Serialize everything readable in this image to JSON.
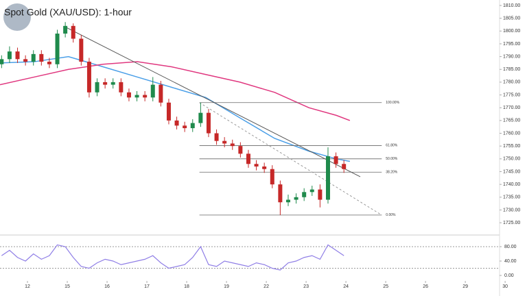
{
  "chart_data": {
    "type": "candlestick",
    "title": "Spot Gold (XAU/USD): 1-hour",
    "xlim": [
      -0.69,
      11.86
    ],
    "xticks": [
      {
        "value": 0,
        "label": "12"
      },
      {
        "value": 1,
        "label": "15"
      },
      {
        "value": 2,
        "label": "16"
      },
      {
        "value": 3,
        "label": "17"
      },
      {
        "value": 4,
        "label": "18"
      },
      {
        "value": 5,
        "label": "19"
      },
      {
        "value": 6,
        "label": "22"
      },
      {
        "value": 7,
        "label": "23"
      },
      {
        "value": 8,
        "label": "24"
      },
      {
        "value": 9,
        "label": "25"
      },
      {
        "value": 10,
        "label": "26"
      },
      {
        "value": 11,
        "label": "29"
      },
      {
        "value": 12,
        "label": "30"
      }
    ],
    "ylim": [
      1721,
      1812.14
    ],
    "yticks": [
      {
        "value": 1810,
        "label": "1810.00"
      },
      {
        "value": 1805,
        "label": "1805.00"
      },
      {
        "value": 1800,
        "label": "1800.00"
      },
      {
        "value": 1795,
        "label": "1795.00"
      },
      {
        "value": 1790,
        "label": "1790.00"
      },
      {
        "value": 1785,
        "label": "1785.00"
      },
      {
        "value": 1780,
        "label": "1780.00"
      },
      {
        "value": 1775,
        "label": "1775.00"
      },
      {
        "value": 1770,
        "label": "1770.00"
      },
      {
        "value": 1765,
        "label": "1765.00"
      },
      {
        "value": 1760,
        "label": "1760.00"
      },
      {
        "value": 1755,
        "label": "1755.00"
      },
      {
        "value": 1750,
        "label": "1750.00"
      },
      {
        "value": 1745,
        "label": "1745.00"
      },
      {
        "value": 1740,
        "label": "1740.00"
      },
      {
        "value": 1735,
        "label": "1735.00"
      },
      {
        "value": 1730,
        "label": "1730.00"
      },
      {
        "value": 1725,
        "label": "1725.00"
      }
    ],
    "up_color": "#1f8a4c",
    "down_color": "#c62828",
    "x": [
      -0.65,
      -0.45,
      -0.25,
      -0.05,
      0.15,
      0.35,
      0.55,
      0.75,
      0.95,
      1.15,
      1.35,
      1.55,
      1.75,
      1.95,
      2.15,
      2.35,
      2.55,
      2.75,
      2.95,
      3.15,
      3.35,
      3.55,
      3.75,
      3.95,
      4.15,
      4.35,
      4.55,
      4.75,
      4.95,
      5.15,
      5.35,
      5.55,
      5.75,
      5.95,
      6.15,
      6.35,
      6.55,
      6.75,
      6.95,
      7.15,
      7.35,
      7.55,
      7.75,
      7.95
    ],
    "open": [
      1787,
      1789,
      1792,
      1789,
      1788,
      1791,
      1788,
      1787,
      1799,
      1802,
      1797,
      1788,
      1776,
      1780,
      1779,
      1780,
      1776,
      1774,
      1775,
      1774,
      1779,
      1772,
      1765,
      1763,
      1762,
      1764,
      1768,
      1760,
      1757,
      1756,
      1755,
      1752,
      1748,
      1747,
      1746,
      1740,
      1733,
      1734,
      1735,
      1737,
      1738,
      1734,
      1751,
      1748
    ],
    "high": [
      1790.5,
      1794,
      1793.5,
      1790.5,
      1792.5,
      1792.5,
      1789.5,
      1800.5,
      1803.5,
      1803,
      1798.5,
      1789.5,
      1781.5,
      1781.5,
      1781.5,
      1781.5,
      1777.5,
      1776.5,
      1776.5,
      1782,
      1780.5,
      1773.5,
      1766.5,
      1764.5,
      1765.5,
      1772,
      1769.5,
      1761.5,
      1758.5,
      1757.5,
      1756.5,
      1753.5,
      1749.5,
      1748.5,
      1747.5,
      1741.5,
      1736,
      1736.5,
      1738.5,
      1739.5,
      1740,
      1754.5,
      1752.5,
      1749.5
    ],
    "low": [
      1785.5,
      1787.5,
      1787.5,
      1786.5,
      1786.5,
      1786.5,
      1785.5,
      1785.5,
      1797.5,
      1795.5,
      1786.5,
      1774,
      1774.5,
      1777.5,
      1777.5,
      1774.5,
      1772.5,
      1772.5,
      1772.5,
      1772.5,
      1770.5,
      1763.5,
      1761.5,
      1760.5,
      1760.5,
      1762.5,
      1758.5,
      1755.5,
      1754.5,
      1753.5,
      1750.5,
      1746.5,
      1745.5,
      1744.5,
      1738.5,
      1728,
      1731.5,
      1732.5,
      1733.5,
      1735.5,
      1731,
      1732.5,
      1746.5,
      1744.5
    ],
    "close": [
      1789,
      1792,
      1789,
      1788,
      1791,
      1788,
      1787,
      1799,
      1802,
      1797,
      1788,
      1776,
      1780,
      1779,
      1780,
      1776,
      1774,
      1775,
      1774,
      1779,
      1772,
      1765,
      1763,
      1762,
      1764,
      1768,
      1760,
      1757,
      1756,
      1755,
      1752,
      1748,
      1747,
      1746,
      1740,
      1733,
      1734,
      1735,
      1737,
      1738,
      1734,
      1751,
      1748,
      1746
    ],
    "ma_x": [
      -0.69,
      0.17,
      1.03,
      1.9,
      2.76,
      3.62,
      4.48,
      5.34,
      6.21,
      7.07,
      7.76,
      8.1
    ],
    "moving_averages": [
      {
        "color": "#4a9fe8",
        "values": [
          1787.5,
          1788,
          1790,
          1786,
          1782,
          1778,
          1774,
          1766,
          1758,
          1753,
          1750,
          1749
        ]
      },
      {
        "color": "#e0377f",
        "values": [
          1779,
          1782,
          1785,
          1787,
          1788,
          1786,
          1783,
          1780,
          1776,
          1770,
          1767,
          1765
        ]
      }
    ],
    "trendline": {
      "x": [
        0.95,
        8.36
      ],
      "y": [
        1801.6,
        1743
      ]
    },
    "fib": {
      "xrange": [
        4.32,
        8.9
      ],
      "levels": [
        {
          "value": 1772,
          "label": "100.00%"
        },
        {
          "value": 1755.2,
          "label": "61.80%"
        },
        {
          "value": 1750,
          "label": "50.00%"
        },
        {
          "value": 1744.8,
          "label": "38.20%"
        },
        {
          "value": 1728,
          "label": "0.00%"
        }
      ]
    },
    "rsi": {
      "ylim": [
        0,
        100
      ],
      "yticks": [
        {
          "value": 80,
          "label": "80.00"
        },
        {
          "value": 40,
          "label": "40.00"
        },
        {
          "value": 0,
          "label": "0.00"
        }
      ],
      "levels": [
        80,
        20
      ],
      "color": "#8f7ee6",
      "values": [
        55,
        70,
        50,
        40,
        60,
        45,
        55,
        85,
        80,
        50,
        25,
        20,
        35,
        45,
        40,
        30,
        35,
        40,
        45,
        55,
        35,
        20,
        25,
        30,
        50,
        80,
        30,
        25,
        40,
        35,
        30,
        25,
        35,
        30,
        20,
        15,
        35,
        40,
        50,
        55,
        45,
        85,
        70,
        55
      ]
    }
  }
}
